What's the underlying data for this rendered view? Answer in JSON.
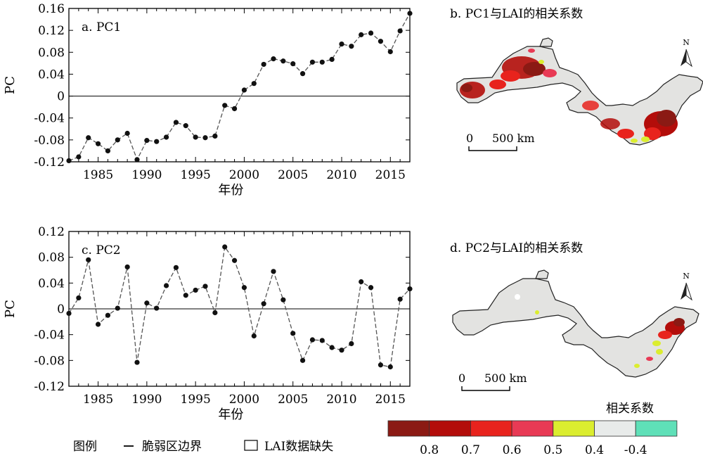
{
  "chart_data": [
    {
      "type": "line",
      "panel_label": "a. PC1",
      "ylabel": "PC",
      "xlabel": "年份",
      "xlim": [
        1982,
        2017
      ],
      "ylim": [
        -0.12,
        0.16
      ],
      "yticks": [
        "0.16",
        "0.12",
        "0.08",
        "0.04",
        "0",
        "-0.04",
        "-0.08",
        "-0.12"
      ],
      "ytick_values": [
        0.16,
        0.12,
        0.08,
        0.04,
        0,
        -0.04,
        -0.08,
        -0.12
      ],
      "xticks": [
        "1985",
        "1990",
        "1995",
        "2000",
        "2005",
        "2010",
        "2015"
      ],
      "xtick_values": [
        1985,
        1990,
        1995,
        2000,
        2005,
        2010,
        2015
      ],
      "zero_line": true,
      "x": [
        1982,
        1983,
        1984,
        1985,
        1986,
        1987,
        1988,
        1989,
        1990,
        1991,
        1992,
        1993,
        1994,
        1995,
        1996,
        1997,
        1998,
        1999,
        2000,
        2001,
        2002,
        2003,
        2004,
        2005,
        2006,
        2007,
        2008,
        2009,
        2010,
        2011,
        2012,
        2013,
        2014,
        2015,
        2016,
        2017
      ],
      "y": [
        -0.118,
        -0.111,
        -0.076,
        -0.087,
        -0.1,
        -0.08,
        -0.068,
        -0.116,
        -0.081,
        -0.083,
        -0.075,
        -0.048,
        -0.054,
        -0.075,
        -0.076,
        -0.073,
        -0.017,
        -0.023,
        0.011,
        0.023,
        0.058,
        0.068,
        0.064,
        0.059,
        0.041,
        0.062,
        0.062,
        0.067,
        0.095,
        0.091,
        0.112,
        0.115,
        0.1,
        0.081,
        0.119,
        0.151
      ]
    },
    {
      "type": "line",
      "panel_label": "c. PC2",
      "ylabel": "PC",
      "xlabel": "年份",
      "xlim": [
        1982,
        2017
      ],
      "ylim": [
        -0.12,
        0.12
      ],
      "yticks": [
        "0.12",
        "0.08",
        "0.04",
        "0",
        "-0.04",
        "-0.08",
        "-0.12"
      ],
      "ytick_values": [
        0.12,
        0.08,
        0.04,
        0,
        -0.04,
        -0.08,
        -0.12
      ],
      "xticks": [
        "1985",
        "1990",
        "1995",
        "2000",
        "2005",
        "2010",
        "2015"
      ],
      "xtick_values": [
        1985,
        1990,
        1995,
        2000,
        2005,
        2010,
        2015
      ],
      "zero_line": true,
      "x": [
        1982,
        1983,
        1984,
        1985,
        1986,
        1987,
        1988,
        1989,
        1990,
        1991,
        1992,
        1993,
        1994,
        1995,
        1996,
        1997,
        1998,
        1999,
        2000,
        2001,
        2002,
        2003,
        2004,
        2005,
        2006,
        2007,
        2008,
        2009,
        2010,
        2011,
        2012,
        2013,
        2014,
        2015,
        2016,
        2017
      ],
      "y": [
        -0.007,
        0.017,
        0.076,
        -0.024,
        -0.01,
        0.001,
        0.065,
        -0.083,
        0.009,
        0.001,
        0.036,
        0.064,
        0.021,
        0.029,
        0.035,
        -0.006,
        0.096,
        0.075,
        0.033,
        -0.042,
        0.008,
        0.058,
        0.014,
        -0.038,
        -0.08,
        -0.048,
        -0.049,
        -0.06,
        -0.064,
        -0.054,
        0.042,
        0.033,
        -0.087,
        -0.09,
        0.015,
        0.031
      ]
    }
  ],
  "maps": [
    {
      "title": "b. PC1与LAI的相关系数",
      "scale_label": "0      500 km",
      "scale_zero": "0",
      "scale_value": "500 km",
      "north": "N",
      "variant": "pc1"
    },
    {
      "title": "d. PC2与LAI的相关系数",
      "scale_label": "0      500 km",
      "scale_zero": "0",
      "scale_value": "500 km",
      "north": "N",
      "variant": "pc2"
    }
  ],
  "legend": {
    "title": "图例",
    "boundary": "脆弱区边界",
    "missing": "LAI数据缺失"
  },
  "colorbar": {
    "title": "相关系数",
    "colors": [
      "#8b1a14",
      "#b30d0a",
      "#e8231d",
      "#e83a55",
      "#dbed2f",
      "#e8ebea",
      "#5fe0b8"
    ],
    "labels": [
      "0.8",
      "0.7",
      "0.6",
      "0.5",
      "0.4",
      "-0.4"
    ]
  },
  "colors": {
    "region_fill": "#e3e3e1",
    "region_stroke": "#222222",
    "line": "#555555",
    "dot": "#111111"
  }
}
